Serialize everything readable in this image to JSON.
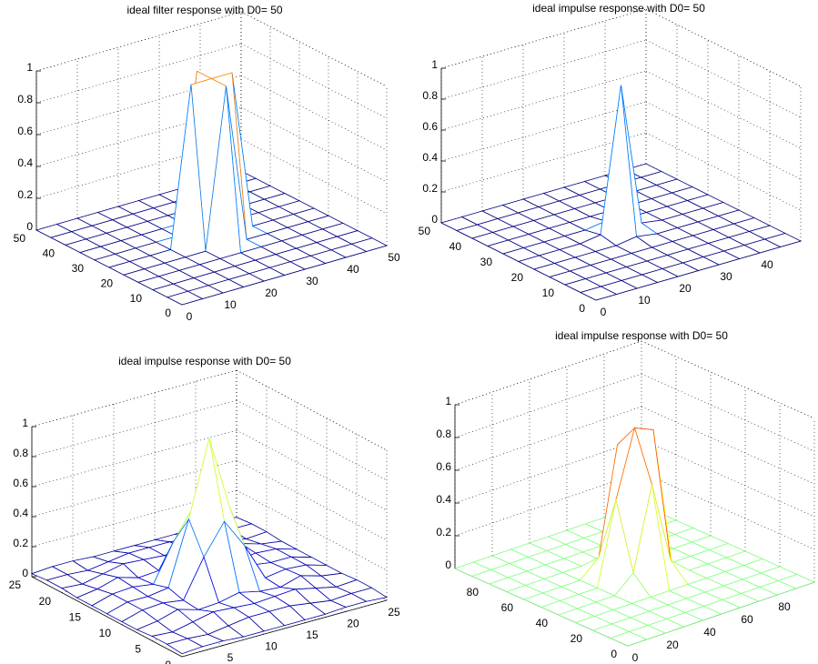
{
  "chart_data": [
    {
      "type": "surface",
      "title": "ideal filter response with D0= 50",
      "colormap": "jet",
      "clim": [
        0,
        1
      ],
      "grid": true,
      "x": [
        0,
        5,
        10,
        15,
        20,
        25,
        30,
        35,
        40,
        45,
        50
      ],
      "y": [
        0,
        5,
        10,
        15,
        20,
        25,
        30,
        35,
        40,
        45,
        50
      ],
      "xlim": [
        0,
        50
      ],
      "ylim": [
        0,
        50
      ],
      "zlim": [
        0,
        1
      ],
      "xticks": [
        0,
        10,
        20,
        30,
        40,
        50
      ],
      "yticks": [
        0,
        10,
        20,
        30,
        40,
        50
      ],
      "zticks": [
        0,
        0.2,
        0.4,
        0.6,
        0.8,
        1
      ],
      "z": [
        [
          0,
          0,
          0,
          0,
          0,
          0,
          0,
          0,
          0,
          0,
          0
        ],
        [
          0,
          0,
          0,
          0,
          0,
          0,
          0,
          0,
          0,
          0,
          0
        ],
        [
          0,
          0,
          0,
          0,
          0,
          0,
          0,
          0,
          0,
          0,
          0
        ],
        [
          0,
          0,
          0,
          0,
          0,
          0,
          0,
          0,
          0,
          0,
          0
        ],
        [
          0,
          0,
          0,
          0,
          0,
          1,
          0,
          0,
          0,
          0,
          0
        ],
        [
          0,
          0,
          0,
          0,
          1,
          1,
          1,
          0,
          0,
          0,
          0
        ],
        [
          0,
          0,
          0,
          0,
          0,
          1,
          0,
          0,
          0,
          0,
          0
        ],
        [
          0,
          0,
          0,
          0,
          0,
          0,
          0,
          0,
          0,
          0,
          0
        ],
        [
          0,
          0,
          0,
          0,
          0,
          0,
          0,
          0,
          0,
          0,
          0
        ],
        [
          0,
          0,
          0,
          0,
          0,
          0,
          0,
          0,
          0,
          0,
          0
        ],
        [
          0,
          0,
          0,
          0,
          0,
          0,
          0,
          0,
          0,
          0,
          0
        ]
      ]
    },
    {
      "type": "surface",
      "title": "ideal impulse response with D0= 50",
      "colormap": "jet",
      "clim": [
        0,
        1
      ],
      "grid": true,
      "x": [
        0,
        5,
        10,
        15,
        20,
        25,
        30,
        35,
        40,
        45,
        50
      ],
      "y": [
        0,
        5,
        10,
        15,
        20,
        25,
        30,
        35,
        40,
        45,
        50
      ],
      "xlim": [
        0,
        50
      ],
      "ylim": [
        0,
        50
      ],
      "zlim": [
        0,
        1
      ],
      "xticks": [
        0,
        10,
        20,
        30,
        40
      ],
      "yticks": [
        0,
        10,
        20,
        30,
        40,
        50
      ],
      "zticks": [
        0,
        0.2,
        0.4,
        0.6,
        0.8,
        1
      ],
      "z": [
        [
          0,
          0,
          0,
          0,
          0,
          0,
          0,
          0,
          0,
          0,
          0
        ],
        [
          0,
          0,
          0,
          0,
          0,
          0,
          0,
          0,
          0,
          0,
          0
        ],
        [
          0,
          0,
          0,
          0,
          0,
          0,
          0,
          0,
          0,
          0,
          0
        ],
        [
          0,
          0,
          0,
          0,
          0,
          0,
          0,
          0,
          0,
          0,
          0
        ],
        [
          0,
          0,
          0,
          0,
          0,
          0.02,
          0,
          0,
          0,
          0,
          0
        ],
        [
          0,
          0,
          0,
          0,
          0.02,
          0.95,
          0.02,
          0,
          0,
          0,
          0
        ],
        [
          0,
          0,
          0,
          0,
          0,
          0.02,
          0,
          0,
          0,
          0,
          0
        ],
        [
          0,
          0,
          0,
          0,
          0,
          0,
          0,
          0,
          0,
          0,
          0
        ],
        [
          0,
          0,
          0,
          0,
          0,
          0,
          0,
          0,
          0,
          0,
          0
        ],
        [
          0,
          0,
          0,
          0,
          0,
          0,
          0,
          0,
          0,
          0,
          0
        ],
        [
          0,
          0,
          0,
          0,
          0,
          0,
          0,
          0,
          0,
          0,
          0
        ]
      ]
    },
    {
      "type": "surface",
      "title": "ideal impulse response with D0= 50",
      "colormap": "jet",
      "clim": [
        0,
        1
      ],
      "grid": true,
      "x": [
        0,
        2.5,
        5,
        7.5,
        10,
        12.5,
        15,
        17.5,
        20,
        22.5,
        25
      ],
      "y": [
        0,
        2.5,
        5,
        7.5,
        10,
        12.5,
        15,
        17.5,
        20,
        22.5,
        25
      ],
      "xlim": [
        0,
        25
      ],
      "ylim": [
        0,
        25
      ],
      "zlim": [
        0,
        1
      ],
      "xticks": [
        0,
        5,
        10,
        15,
        20,
        25
      ],
      "yticks": [
        0,
        5,
        10,
        15,
        20,
        25
      ],
      "zticks": [
        0,
        0.2,
        0.4,
        0.6,
        0.8,
        1
      ],
      "z": [
        [
          0.02,
          0.03,
          0.03,
          0.02,
          0.02,
          0.02,
          0.02,
          0.02,
          0.03,
          0.03,
          0.02
        ],
        [
          0.03,
          0.03,
          0.02,
          0.04,
          0.06,
          0.06,
          0.06,
          0.04,
          0.02,
          0.03,
          0.03
        ],
        [
          0.03,
          0.02,
          0.05,
          0.08,
          0.07,
          0.06,
          0.07,
          0.08,
          0.05,
          0.02,
          0.03
        ],
        [
          0.02,
          0.04,
          0.08,
          0.04,
          0.05,
          0.08,
          0.05,
          0.04,
          0.08,
          0.04,
          0.02
        ],
        [
          0.02,
          0.06,
          0.07,
          0.05,
          0.3,
          0.5,
          0.3,
          0.05,
          0.07,
          0.06,
          0.02
        ],
        [
          0.02,
          0.06,
          0.06,
          0.08,
          0.5,
          1,
          0.5,
          0.08,
          0.06,
          0.06,
          0.02
        ],
        [
          0.02,
          0.06,
          0.07,
          0.05,
          0.3,
          0.5,
          0.3,
          0.05,
          0.07,
          0.06,
          0.02
        ],
        [
          0.02,
          0.04,
          0.08,
          0.04,
          0.05,
          0.08,
          0.05,
          0.04,
          0.08,
          0.04,
          0.02
        ],
        [
          0.03,
          0.02,
          0.05,
          0.08,
          0.07,
          0.06,
          0.07,
          0.08,
          0.05,
          0.02,
          0.03
        ],
        [
          0.03,
          0.03,
          0.02,
          0.04,
          0.06,
          0.06,
          0.06,
          0.04,
          0.02,
          0.03,
          0.03
        ],
        [
          0.02,
          0.03,
          0.03,
          0.02,
          0.02,
          0.02,
          0.02,
          0.02,
          0.03,
          0.03,
          0.02
        ]
      ]
    },
    {
      "type": "surface",
      "title": "ideal impulse response with D0= 50",
      "colormap": "jet",
      "clim": [
        -1,
        1
      ],
      "grid": true,
      "x": [
        0,
        10,
        20,
        30,
        40,
        50,
        60,
        70,
        80,
        90,
        100
      ],
      "y": [
        0,
        10,
        20,
        30,
        40,
        50,
        60,
        70,
        80,
        90,
        100
      ],
      "xlim": [
        0,
        100
      ],
      "ylim": [
        0,
        100
      ],
      "zlim": [
        0,
        1
      ],
      "xticks": [
        0,
        20,
        40,
        60,
        80
      ],
      "yticks": [
        0,
        20,
        40,
        60,
        80
      ],
      "zticks": [
        0,
        0.2,
        0.4,
        0.6,
        0.8,
        1
      ],
      "z": [
        [
          0,
          0,
          0,
          0,
          0,
          0,
          0,
          0,
          0,
          0,
          0
        ],
        [
          0,
          0,
          0,
          0,
          0,
          0,
          0,
          0,
          0,
          0,
          0
        ],
        [
          0,
          0,
          0,
          0,
          0,
          0,
          0,
          0,
          0,
          0,
          0
        ],
        [
          0,
          0,
          0,
          0,
          0,
          0,
          0,
          0,
          0,
          0,
          0
        ],
        [
          0,
          0,
          0,
          0,
          0.1,
          0.6,
          0.1,
          0,
          0,
          0,
          0
        ],
        [
          0,
          0,
          0,
          0,
          0.5,
          0.9,
          0.85,
          0,
          0,
          0,
          0
        ],
        [
          0,
          0,
          0,
          0,
          0.1,
          0.75,
          0.1,
          0,
          0,
          0,
          0
        ],
        [
          0,
          0,
          0,
          0,
          0,
          0,
          0,
          0,
          0,
          0,
          0
        ],
        [
          0,
          0,
          0,
          0,
          0,
          0,
          0,
          0,
          0,
          0,
          0
        ],
        [
          0,
          0,
          0,
          0,
          0,
          0,
          0,
          0,
          0,
          0,
          0
        ],
        [
          0,
          0,
          0,
          0,
          0,
          0,
          0,
          0,
          0,
          0,
          0
        ]
      ]
    }
  ]
}
